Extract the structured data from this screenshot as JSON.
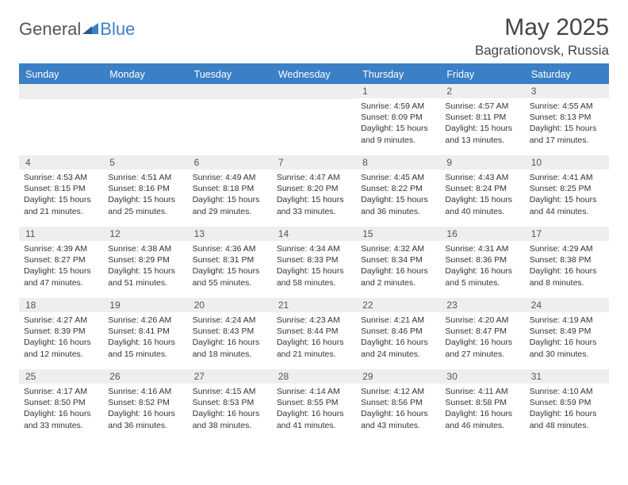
{
  "colors": {
    "header_blue": "#3b7fc4",
    "grey_band": "#eeeeee",
    "text": "#333333",
    "bg": "#ffffff"
  },
  "logo": {
    "general": "General",
    "blue": "Blue"
  },
  "title": "May 2025",
  "location": "Bagrationovsk, Russia",
  "dow": [
    "Sunday",
    "Monday",
    "Tuesday",
    "Wednesday",
    "Thursday",
    "Friday",
    "Saturday"
  ],
  "weeks": [
    [
      null,
      null,
      null,
      null,
      {
        "d": "1",
        "sr": "Sunrise: 4:59 AM",
        "ss": "Sunset: 8:09 PM",
        "dl1": "Daylight: 15 hours",
        "dl2": "and 9 minutes."
      },
      {
        "d": "2",
        "sr": "Sunrise: 4:57 AM",
        "ss": "Sunset: 8:11 PM",
        "dl1": "Daylight: 15 hours",
        "dl2": "and 13 minutes."
      },
      {
        "d": "3",
        "sr": "Sunrise: 4:55 AM",
        "ss": "Sunset: 8:13 PM",
        "dl1": "Daylight: 15 hours",
        "dl2": "and 17 minutes."
      }
    ],
    [
      {
        "d": "4",
        "sr": "Sunrise: 4:53 AM",
        "ss": "Sunset: 8:15 PM",
        "dl1": "Daylight: 15 hours",
        "dl2": "and 21 minutes."
      },
      {
        "d": "5",
        "sr": "Sunrise: 4:51 AM",
        "ss": "Sunset: 8:16 PM",
        "dl1": "Daylight: 15 hours",
        "dl2": "and 25 minutes."
      },
      {
        "d": "6",
        "sr": "Sunrise: 4:49 AM",
        "ss": "Sunset: 8:18 PM",
        "dl1": "Daylight: 15 hours",
        "dl2": "and 29 minutes."
      },
      {
        "d": "7",
        "sr": "Sunrise: 4:47 AM",
        "ss": "Sunset: 8:20 PM",
        "dl1": "Daylight: 15 hours",
        "dl2": "and 33 minutes."
      },
      {
        "d": "8",
        "sr": "Sunrise: 4:45 AM",
        "ss": "Sunset: 8:22 PM",
        "dl1": "Daylight: 15 hours",
        "dl2": "and 36 minutes."
      },
      {
        "d": "9",
        "sr": "Sunrise: 4:43 AM",
        "ss": "Sunset: 8:24 PM",
        "dl1": "Daylight: 15 hours",
        "dl2": "and 40 minutes."
      },
      {
        "d": "10",
        "sr": "Sunrise: 4:41 AM",
        "ss": "Sunset: 8:25 PM",
        "dl1": "Daylight: 15 hours",
        "dl2": "and 44 minutes."
      }
    ],
    [
      {
        "d": "11",
        "sr": "Sunrise: 4:39 AM",
        "ss": "Sunset: 8:27 PM",
        "dl1": "Daylight: 15 hours",
        "dl2": "and 47 minutes."
      },
      {
        "d": "12",
        "sr": "Sunrise: 4:38 AM",
        "ss": "Sunset: 8:29 PM",
        "dl1": "Daylight: 15 hours",
        "dl2": "and 51 minutes."
      },
      {
        "d": "13",
        "sr": "Sunrise: 4:36 AM",
        "ss": "Sunset: 8:31 PM",
        "dl1": "Daylight: 15 hours",
        "dl2": "and 55 minutes."
      },
      {
        "d": "14",
        "sr": "Sunrise: 4:34 AM",
        "ss": "Sunset: 8:33 PM",
        "dl1": "Daylight: 15 hours",
        "dl2": "and 58 minutes."
      },
      {
        "d": "15",
        "sr": "Sunrise: 4:32 AM",
        "ss": "Sunset: 8:34 PM",
        "dl1": "Daylight: 16 hours",
        "dl2": "and 2 minutes."
      },
      {
        "d": "16",
        "sr": "Sunrise: 4:31 AM",
        "ss": "Sunset: 8:36 PM",
        "dl1": "Daylight: 16 hours",
        "dl2": "and 5 minutes."
      },
      {
        "d": "17",
        "sr": "Sunrise: 4:29 AM",
        "ss": "Sunset: 8:38 PM",
        "dl1": "Daylight: 16 hours",
        "dl2": "and 8 minutes."
      }
    ],
    [
      {
        "d": "18",
        "sr": "Sunrise: 4:27 AM",
        "ss": "Sunset: 8:39 PM",
        "dl1": "Daylight: 16 hours",
        "dl2": "and 12 minutes."
      },
      {
        "d": "19",
        "sr": "Sunrise: 4:26 AM",
        "ss": "Sunset: 8:41 PM",
        "dl1": "Daylight: 16 hours",
        "dl2": "and 15 minutes."
      },
      {
        "d": "20",
        "sr": "Sunrise: 4:24 AM",
        "ss": "Sunset: 8:43 PM",
        "dl1": "Daylight: 16 hours",
        "dl2": "and 18 minutes."
      },
      {
        "d": "21",
        "sr": "Sunrise: 4:23 AM",
        "ss": "Sunset: 8:44 PM",
        "dl1": "Daylight: 16 hours",
        "dl2": "and 21 minutes."
      },
      {
        "d": "22",
        "sr": "Sunrise: 4:21 AM",
        "ss": "Sunset: 8:46 PM",
        "dl1": "Daylight: 16 hours",
        "dl2": "and 24 minutes."
      },
      {
        "d": "23",
        "sr": "Sunrise: 4:20 AM",
        "ss": "Sunset: 8:47 PM",
        "dl1": "Daylight: 16 hours",
        "dl2": "and 27 minutes."
      },
      {
        "d": "24",
        "sr": "Sunrise: 4:19 AM",
        "ss": "Sunset: 8:49 PM",
        "dl1": "Daylight: 16 hours",
        "dl2": "and 30 minutes."
      }
    ],
    [
      {
        "d": "25",
        "sr": "Sunrise: 4:17 AM",
        "ss": "Sunset: 8:50 PM",
        "dl1": "Daylight: 16 hours",
        "dl2": "and 33 minutes."
      },
      {
        "d": "26",
        "sr": "Sunrise: 4:16 AM",
        "ss": "Sunset: 8:52 PM",
        "dl1": "Daylight: 16 hours",
        "dl2": "and 36 minutes."
      },
      {
        "d": "27",
        "sr": "Sunrise: 4:15 AM",
        "ss": "Sunset: 8:53 PM",
        "dl1": "Daylight: 16 hours",
        "dl2": "and 38 minutes."
      },
      {
        "d": "28",
        "sr": "Sunrise: 4:14 AM",
        "ss": "Sunset: 8:55 PM",
        "dl1": "Daylight: 16 hours",
        "dl2": "and 41 minutes."
      },
      {
        "d": "29",
        "sr": "Sunrise: 4:12 AM",
        "ss": "Sunset: 8:56 PM",
        "dl1": "Daylight: 16 hours",
        "dl2": "and 43 minutes."
      },
      {
        "d": "30",
        "sr": "Sunrise: 4:11 AM",
        "ss": "Sunset: 8:58 PM",
        "dl1": "Daylight: 16 hours",
        "dl2": "and 46 minutes."
      },
      {
        "d": "31",
        "sr": "Sunrise: 4:10 AM",
        "ss": "Sunset: 8:59 PM",
        "dl1": "Daylight: 16 hours",
        "dl2": "and 48 minutes."
      }
    ]
  ]
}
